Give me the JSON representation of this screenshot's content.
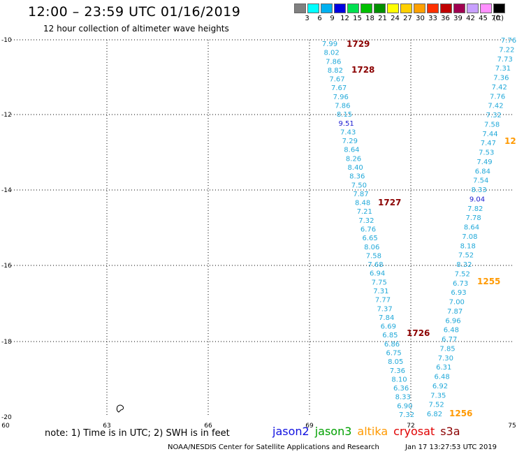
{
  "header": {
    "title": "12:00 – 23:59 UTC 01/16/2019",
    "subtitle": "12 hour collection of altimeter wave heights"
  },
  "scale": {
    "labels": [
      "3",
      "6",
      "9",
      "12",
      "15",
      "18",
      "21",
      "24",
      "27",
      "30",
      "33",
      "36",
      "39",
      "42",
      "45",
      "70"
    ],
    "unit": "(ft)",
    "colors": [
      "#808080",
      "#00ffff",
      "#00b0f0",
      "#0000e0",
      "#00e050",
      "#00c000",
      "#009000",
      "#ffff00",
      "#ffd000",
      "#ffa000",
      "#ff3000",
      "#c00000",
      "#a00050",
      "#c8a0ff",
      "#ff90ff",
      "#000000"
    ]
  },
  "axes": {
    "y_labels": [
      "-10",
      "-12",
      "-14",
      "-16",
      "-18",
      "-20"
    ],
    "x_labels": [
      "60",
      "63",
      "66",
      "69",
      "72",
      "75"
    ]
  },
  "tracks": [
    {
      "label": "1729",
      "color": "#8b0000"
    },
    {
      "label": "1728",
      "color": "#8b0000"
    },
    {
      "label": "1727",
      "color": "#8b0000"
    },
    {
      "label": "1726",
      "color": "#8b0000"
    },
    {
      "label": "1255",
      "color": "#ff9900"
    },
    {
      "label": "1256",
      "color": "#ff9900"
    },
    {
      "label": "12",
      "color": "#ff9900"
    }
  ],
  "track_a_values": [
    "7.99",
    "8.02",
    "7.86",
    "8.82",
    "7.67",
    "7.67",
    "7.96",
    "7.86",
    "8.15",
    "9.51",
    "7.43",
    "7.29",
    "8.64",
    "8.26",
    "8.40",
    "8.36",
    "7.50",
    "7.87",
    "8.48",
    "7.21",
    "7.32",
    "6.76",
    "6.65",
    "8.06",
    "7.58",
    "7.68",
    "6.94",
    "7.75",
    "7.31",
    "7.77",
    "7.37",
    "7.84",
    "6.69",
    "6.85",
    "6.86",
    "6.75",
    "8.05",
    "7.36",
    "8.10",
    "6.36",
    "8.33",
    "6.90",
    "7.32"
  ],
  "track_b_values": [
    "7.76",
    "7.22",
    "7.73",
    "7.31",
    "7.36",
    "7.42",
    "7.76",
    "7.42",
    "7.32",
    "7.58",
    "7.44",
    "7.47",
    "7.53",
    "7.49",
    "6.84",
    "7.54",
    "8.33",
    "9.04",
    "7.82",
    "7.78",
    "8.64",
    "7.08",
    "8.18",
    "7.52",
    "8.32",
    "7.52",
    "6.73",
    "6.93",
    "7.00",
    "7.87",
    "6.96",
    "6.48",
    "6.77",
    "7.85",
    "7.30",
    "6.31",
    "6.48",
    "6.92",
    "7.35",
    "7.52",
    "6.82"
  ],
  "footer": {
    "note": "note: 1) Time is in UTC; 2) SWH is in feet",
    "legend": [
      {
        "name": "jason2",
        "color": "#1010e0"
      },
      {
        "name": "jason3",
        "color": "#00a000"
      },
      {
        "name": "altika",
        "color": "#ff9900"
      },
      {
        "name": "cryosat",
        "color": "#e00000"
      },
      {
        "name": "s3a",
        "color": "#8b0000"
      }
    ],
    "credit": "NOAA/NESDIS Center for Satellite Applications and Research",
    "timestamp": "Jan 17 13:27:53 UTC 2019"
  }
}
